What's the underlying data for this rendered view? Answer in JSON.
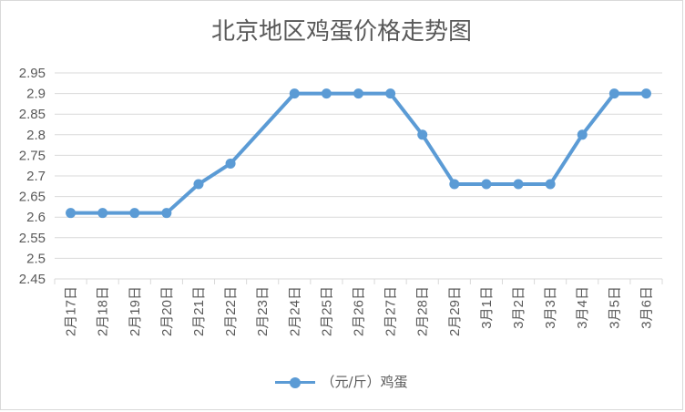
{
  "chart_data": {
    "type": "line",
    "title": "北京地区鸡蛋价格走势图",
    "categories": [
      "2月17日",
      "2月18日",
      "2月19日",
      "2月20日",
      "2月21日",
      "2月22日",
      "2月23日",
      "2月24日",
      "2月25日",
      "2月26日",
      "2月27日",
      "2月28日",
      "2月29日",
      "3月1日",
      "3月2日",
      "3月3日",
      "3月4日",
      "3月5日",
      "3月6日"
    ],
    "series": [
      {
        "name": "（元/斤）鸡蛋",
        "values": [
          2.61,
          2.61,
          2.61,
          2.61,
          2.68,
          2.73,
          null,
          2.9,
          2.9,
          2.9,
          2.9,
          2.8,
          2.68,
          2.68,
          2.68,
          2.68,
          2.8,
          2.9,
          2.9
        ]
      }
    ],
    "yticks": [
      "2.45",
      "2.5",
      "2.55",
      "2.6",
      "2.65",
      "2.7",
      "2.75",
      "2.8",
      "2.85",
      "2.9",
      "2.95"
    ],
    "ylim": [
      2.45,
      2.95
    ],
    "grid": true,
    "legend_position": "bottom",
    "colors": {
      "series": "#5b9bd5",
      "grid": "#d9d9d9",
      "text": "#595959"
    }
  }
}
